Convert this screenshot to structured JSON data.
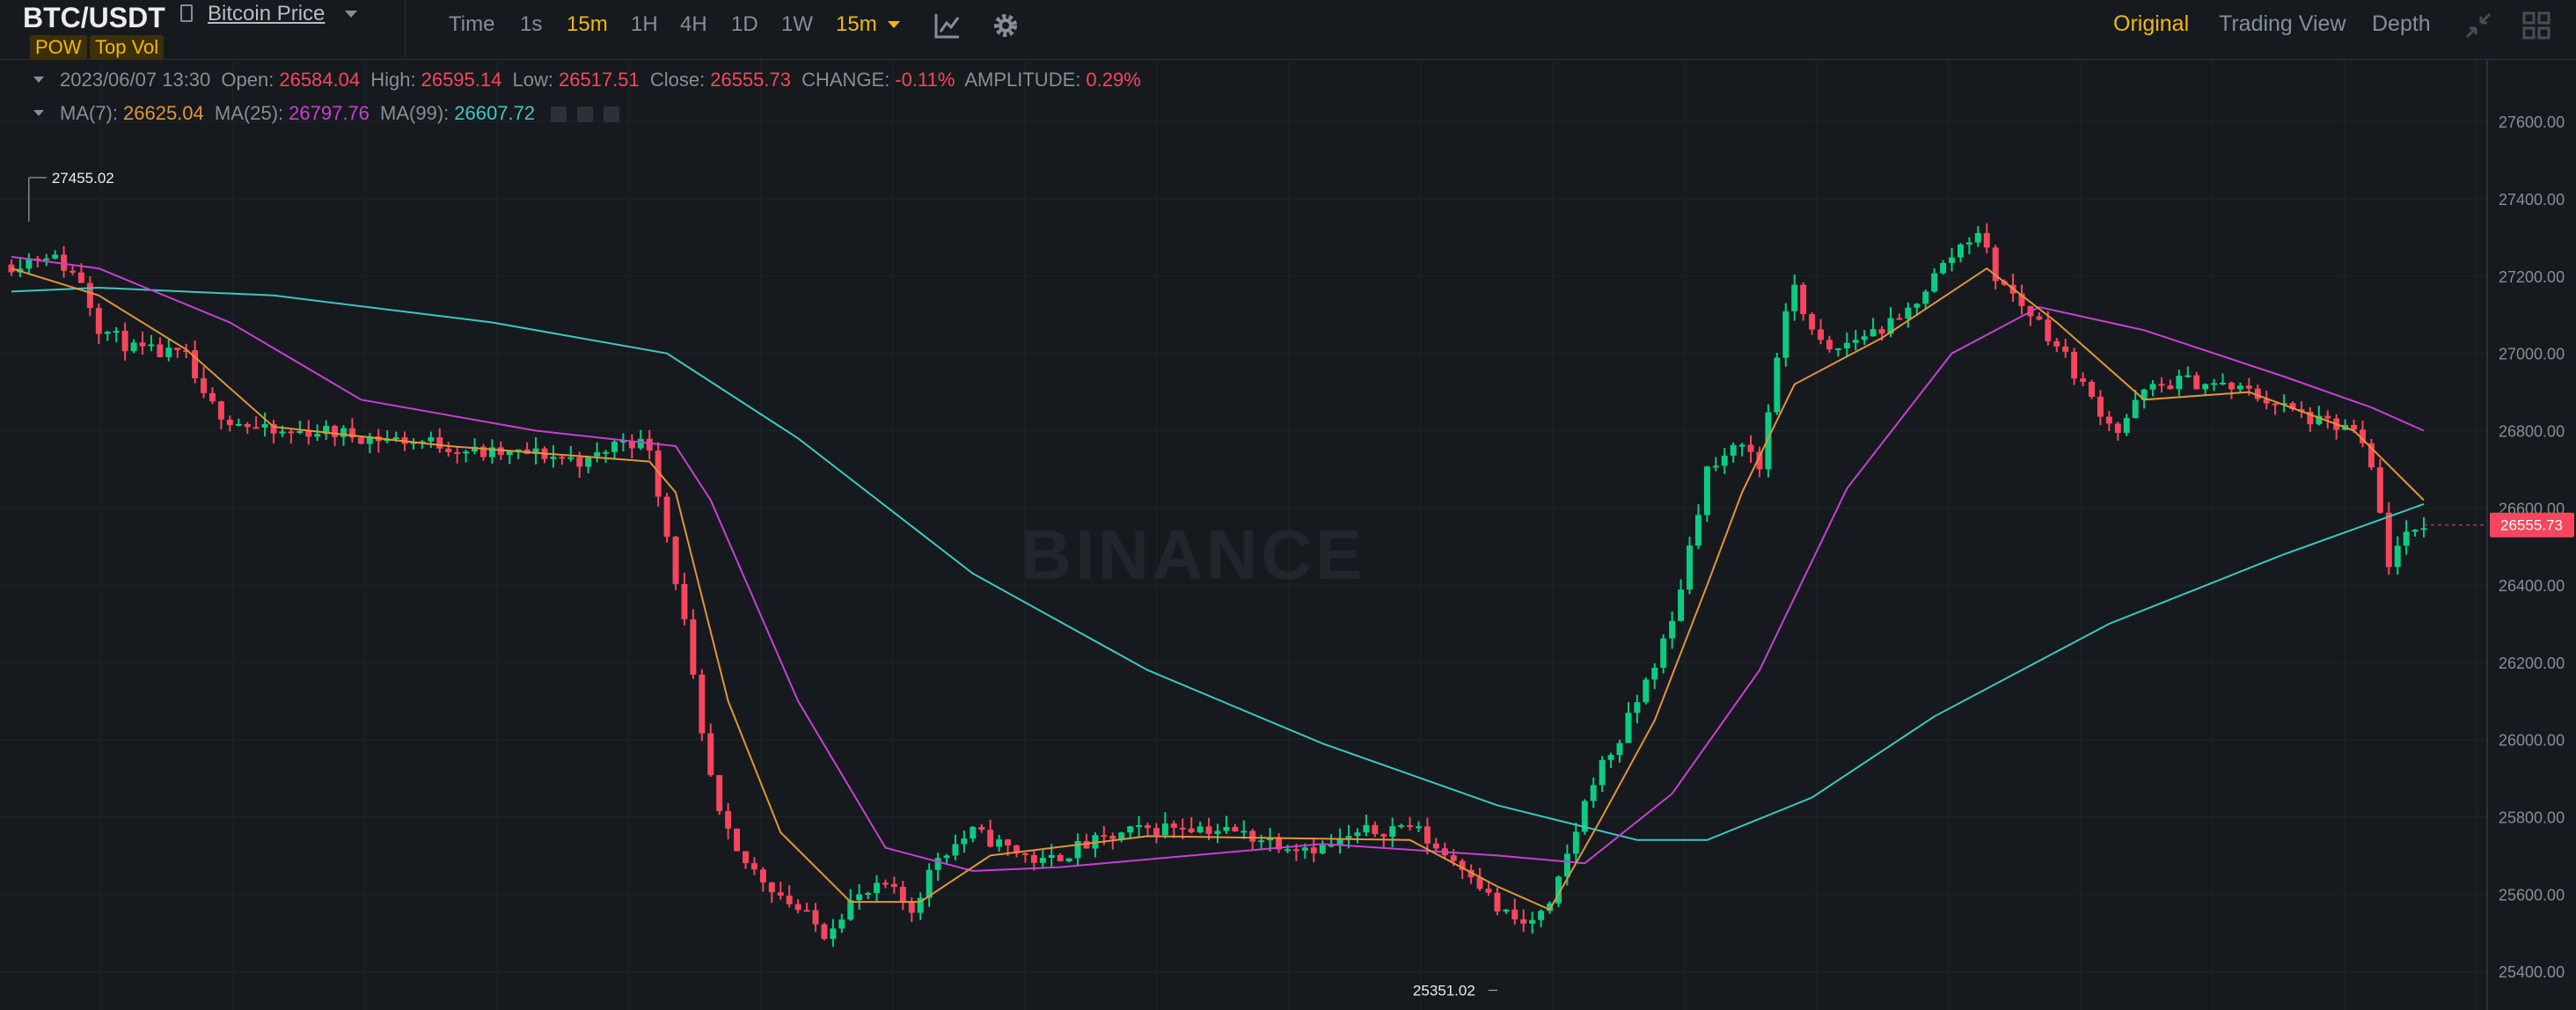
{
  "header": {
    "pair": "BTC/USDT",
    "price_link": "Bitcoin Price",
    "tags": [
      "POW",
      "Top Vol"
    ],
    "timeframes": [
      "Time",
      "1s",
      "15m",
      "1H",
      "4H",
      "1D",
      "1W"
    ],
    "active_timeframe": "15m",
    "dropdown_value": "15m",
    "views": [
      "Original",
      "Trading View",
      "Depth"
    ],
    "active_view": "Original"
  },
  "ohlc": {
    "datetime": "2023/06/07 13:30",
    "open_label": "Open:",
    "open": "26584.04",
    "high_label": "High:",
    "high": "26595.14",
    "low_label": "Low:",
    "low": "26517.51",
    "close_label": "Close:",
    "close": "26555.73",
    "change_label": "CHANGE:",
    "change": "-0.11%",
    "amplitude_label": "AMPLITUDE:",
    "amplitude": "0.29%"
  },
  "ma": {
    "ma7_label": "MA(7):",
    "ma7": "26625.04",
    "ma25_label": "MA(25):",
    "ma25": "26797.76",
    "ma99_label": "MA(99):",
    "ma99": "26607.72"
  },
  "watermark": "BINANCE",
  "colors": {
    "up": "#0ecb81",
    "down": "#f6465d",
    "ma7": "#e0953a",
    "ma25": "#c83fd4",
    "ma99": "#3ec7c1",
    "accent": "#f0b90b",
    "background": "#161a1e"
  },
  "chart_data": {
    "type": "candlestick",
    "y_ticks": [
      25400,
      25600,
      25800,
      26000,
      26200,
      26400,
      26600,
      26800,
      27000,
      27200,
      27400,
      27600
    ],
    "y_tick_labels": [
      "25400.00",
      "25600.00",
      "25800.00",
      "26000.00",
      "26200.00",
      "26400.00",
      "26600.00",
      "26800.00",
      "27000.00",
      "27200.00",
      "27400.00",
      "27600.00"
    ],
    "ylim": [
      25300,
      27760
    ],
    "high_marker": {
      "label": "27455.02",
      "value": 27455.02
    },
    "low_marker": {
      "label": "25351.02",
      "value": 25351.02
    },
    "last_price": {
      "label": "26555.73",
      "value": 26555.73
    },
    "close_path": [
      [
        0,
        27230
      ],
      [
        4,
        27260
      ],
      [
        8,
        27190
      ],
      [
        10,
        27070
      ],
      [
        14,
        27010
      ],
      [
        20,
        26990
      ],
      [
        22,
        26880
      ],
      [
        25,
        26830
      ],
      [
        30,
        26790
      ],
      [
        35,
        26800
      ],
      [
        42,
        26780
      ],
      [
        48,
        26770
      ],
      [
        54,
        26740
      ],
      [
        60,
        26740
      ],
      [
        66,
        26720
      ],
      [
        70,
        26780
      ],
      [
        73,
        26760
      ],
      [
        75,
        26530
      ],
      [
        77,
        26300
      ],
      [
        79,
        26000
      ],
      [
        81,
        25800
      ],
      [
        83,
        25700
      ],
      [
        86,
        25640
      ],
      [
        90,
        25560
      ],
      [
        93,
        25500
      ],
      [
        96,
        25580
      ],
      [
        100,
        25620
      ],
      [
        103,
        25560
      ],
      [
        106,
        25700
      ],
      [
        110,
        25760
      ],
      [
        114,
        25720
      ],
      [
        118,
        25680
      ],
      [
        122,
        25720
      ],
      [
        128,
        25760
      ],
      [
        134,
        25780
      ],
      [
        140,
        25760
      ],
      [
        146,
        25730
      ],
      [
        150,
        25720
      ],
      [
        155,
        25760
      ],
      [
        160,
        25780
      ],
      [
        163,
        25720
      ],
      [
        167,
        25660
      ],
      [
        170,
        25560
      ],
      [
        173,
        25520
      ],
      [
        176,
        25560
      ],
      [
        178,
        25700
      ],
      [
        181,
        25900
      ],
      [
        184,
        26000
      ],
      [
        187,
        26150
      ],
      [
        190,
        26300
      ],
      [
        192,
        26500
      ],
      [
        194,
        26700
      ],
      [
        196,
        26720
      ],
      [
        198,
        26780
      ],
      [
        200,
        26700
      ],
      [
        202,
        27000
      ],
      [
        204,
        27180
      ],
      [
        206,
        27050
      ],
      [
        208,
        27000
      ],
      [
        212,
        27050
      ],
      [
        216,
        27080
      ],
      [
        220,
        27200
      ],
      [
        223,
        27280
      ],
      [
        225,
        27320
      ],
      [
        227,
        27200
      ],
      [
        229,
        27150
      ],
      [
        232,
        27080
      ],
      [
        235,
        26990
      ],
      [
        238,
        26880
      ],
      [
        241,
        26800
      ],
      [
        244,
        26900
      ],
      [
        248,
        26930
      ],
      [
        252,
        26920
      ],
      [
        256,
        26900
      ],
      [
        260,
        26860
      ],
      [
        264,
        26820
      ],
      [
        268,
        26800
      ],
      [
        270,
        26700
      ],
      [
        272,
        26460
      ],
      [
        274,
        26520
      ],
      [
        276,
        26560
      ]
    ],
    "ma7_path": [
      [
        0,
        27220
      ],
      [
        10,
        27150
      ],
      [
        20,
        27010
      ],
      [
        30,
        26810
      ],
      [
        50,
        26760
      ],
      [
        73,
        26720
      ],
      [
        76,
        26640
      ],
      [
        82,
        26100
      ],
      [
        88,
        25760
      ],
      [
        96,
        25580
      ],
      [
        104,
        25580
      ],
      [
        112,
        25700
      ],
      [
        130,
        25750
      ],
      [
        160,
        25740
      ],
      [
        170,
        25620
      ],
      [
        176,
        25560
      ],
      [
        182,
        25800
      ],
      [
        188,
        26050
      ],
      [
        194,
        26400
      ],
      [
        198,
        26640
      ],
      [
        204,
        26920
      ],
      [
        214,
        27040
      ],
      [
        226,
        27220
      ],
      [
        234,
        27080
      ],
      [
        244,
        26880
      ],
      [
        256,
        26900
      ],
      [
        268,
        26800
      ],
      [
        276,
        26620
      ]
    ],
    "ma25_path": [
      [
        0,
        27250
      ],
      [
        10,
        27220
      ],
      [
        25,
        27080
      ],
      [
        40,
        26880
      ],
      [
        60,
        26800
      ],
      [
        76,
        26760
      ],
      [
        80,
        26620
      ],
      [
        90,
        26100
      ],
      [
        100,
        25720
      ],
      [
        110,
        25660
      ],
      [
        120,
        25670
      ],
      [
        150,
        25730
      ],
      [
        170,
        25700
      ],
      [
        180,
        25680
      ],
      [
        190,
        25860
      ],
      [
        200,
        26180
      ],
      [
        210,
        26650
      ],
      [
        222,
        27000
      ],
      [
        232,
        27120
      ],
      [
        244,
        27060
      ],
      [
        260,
        26940
      ],
      [
        270,
        26860
      ],
      [
        276,
        26800
      ]
    ],
    "ma99_path": [
      [
        0,
        27160
      ],
      [
        10,
        27170
      ],
      [
        30,
        27150
      ],
      [
        55,
        27080
      ],
      [
        75,
        27000
      ],
      [
        90,
        26780
      ],
      [
        110,
        26430
      ],
      [
        130,
        26180
      ],
      [
        150,
        25990
      ],
      [
        170,
        25830
      ],
      [
        186,
        25740
      ],
      [
        194,
        25740
      ],
      [
        206,
        25850
      ],
      [
        220,
        26060
      ],
      [
        240,
        26300
      ],
      [
        260,
        26480
      ],
      [
        276,
        26610
      ]
    ]
  }
}
